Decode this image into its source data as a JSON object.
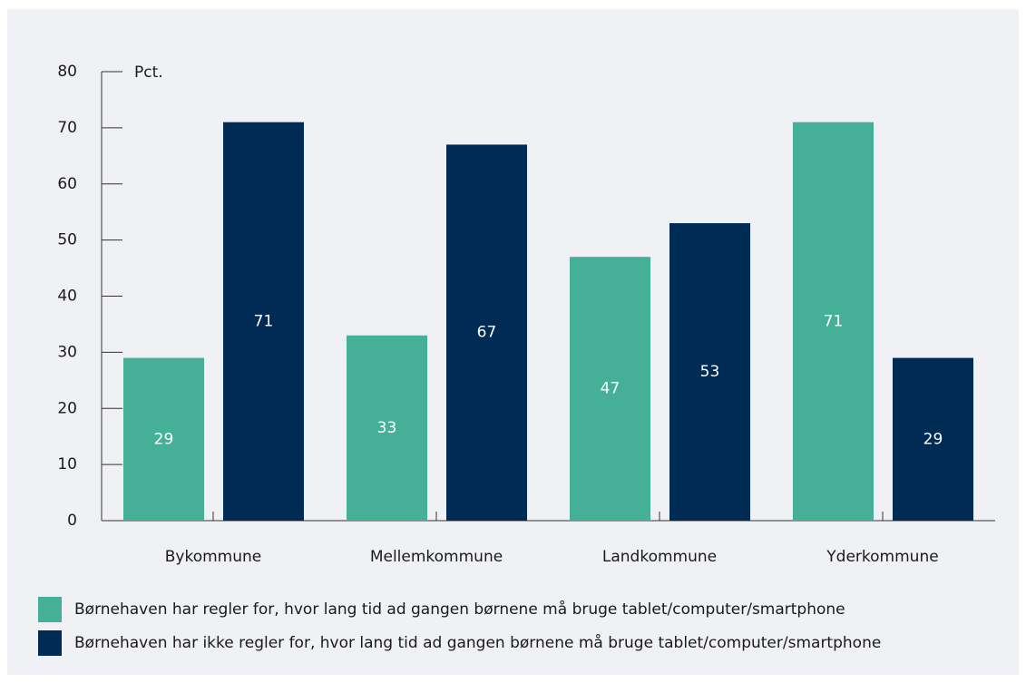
{
  "chart_data": {
    "type": "bar",
    "y_label": "Pct.",
    "categories": [
      "Bykommune",
      "Mellemkommune",
      "Landkommune",
      "Yderkommune"
    ],
    "series": [
      {
        "name": "Børnehaven har regler for, hvor lang tid ad gangen børnene må bruge tablet/computer/smartphone",
        "color": "#45b097",
        "values": [
          29,
          33,
          47,
          71
        ]
      },
      {
        "name": "Børnehaven har ikke regler for, hvor lang tid ad gangen børnene må bruge tablet/computer/smartphone",
        "color": "#002b55",
        "values": [
          71,
          67,
          53,
          29
        ]
      }
    ],
    "ylim": [
      0,
      80
    ],
    "yticks": [
      0,
      10,
      20,
      30,
      40,
      50,
      60,
      70,
      80
    ]
  }
}
